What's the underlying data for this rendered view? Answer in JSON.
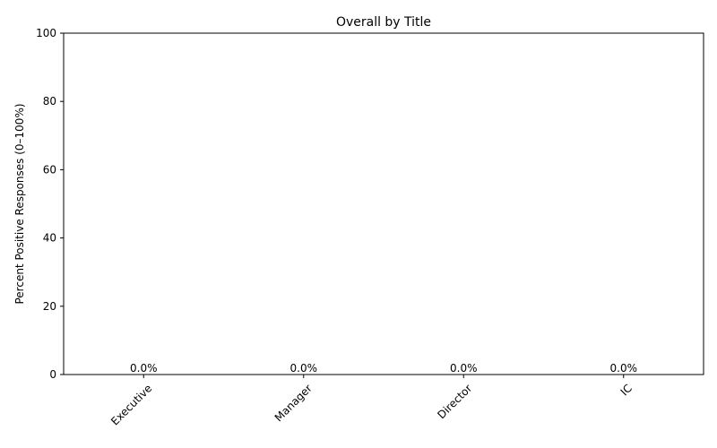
{
  "chart_data": {
    "type": "bar",
    "title": "Overall by Title",
    "xlabel": "",
    "ylabel": "Percent Positive Responses (0–100%)",
    "categories": [
      "Executive",
      "Manager",
      "Director",
      "IC"
    ],
    "values": [
      0.0,
      0.0,
      0.0,
      0.0
    ],
    "value_labels": [
      "0.0%",
      "0.0%",
      "0.0%",
      "0.0%"
    ],
    "ylim": [
      0,
      100
    ],
    "yticks": [
      0,
      20,
      40,
      60,
      80,
      100
    ],
    "ytick_labels": [
      "0",
      "20",
      "40",
      "60",
      "80",
      "100"
    ],
    "grid": false,
    "legend": "none"
  }
}
